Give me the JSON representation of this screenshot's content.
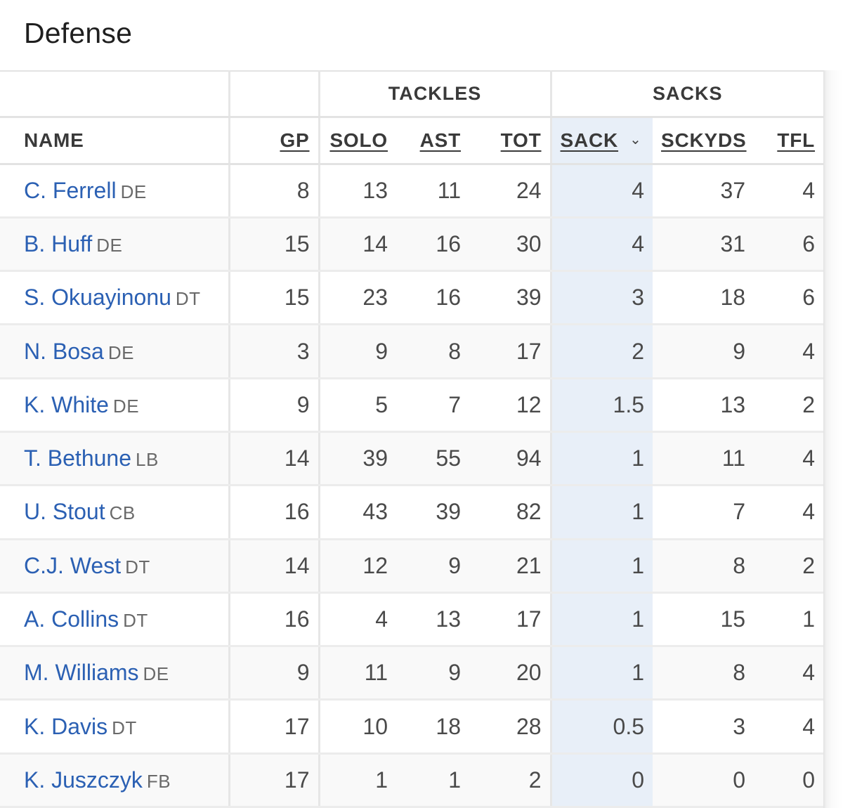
{
  "section": {
    "title": "Defense"
  },
  "groups": {
    "tackles": "TACKLES",
    "sacks": "SACKS"
  },
  "columns": {
    "name": "NAME",
    "gp": "GP",
    "solo": "SOLO",
    "ast": "AST",
    "tot": "TOT",
    "sack": "SACK",
    "sckyds": "SCKYDS",
    "tfl": "TFL"
  },
  "sort": {
    "column": "SACK",
    "direction": "descending",
    "icon": "chevron-down-icon"
  },
  "colors": {
    "link": "#2b60b3",
    "sorted_column_bg": "#e8eff8"
  },
  "players": [
    {
      "name": "C. Ferrell",
      "pos": "DE",
      "gp": "8",
      "solo": "13",
      "ast": "11",
      "tot": "24",
      "sack": "4",
      "sckyds": "37",
      "tfl": "4"
    },
    {
      "name": "B. Huff",
      "pos": "DE",
      "gp": "15",
      "solo": "14",
      "ast": "16",
      "tot": "30",
      "sack": "4",
      "sckyds": "31",
      "tfl": "6"
    },
    {
      "name": "S. Okuayinonu",
      "pos": "DT",
      "gp": "15",
      "solo": "23",
      "ast": "16",
      "tot": "39",
      "sack": "3",
      "sckyds": "18",
      "tfl": "6"
    },
    {
      "name": "N. Bosa",
      "pos": "DE",
      "gp": "3",
      "solo": "9",
      "ast": "8",
      "tot": "17",
      "sack": "2",
      "sckyds": "9",
      "tfl": "4"
    },
    {
      "name": "K. White",
      "pos": "DE",
      "gp": "9",
      "solo": "5",
      "ast": "7",
      "tot": "12",
      "sack": "1.5",
      "sckyds": "13",
      "tfl": "2"
    },
    {
      "name": "T. Bethune",
      "pos": "LB",
      "gp": "14",
      "solo": "39",
      "ast": "55",
      "tot": "94",
      "sack": "1",
      "sckyds": "11",
      "tfl": "4"
    },
    {
      "name": "U. Stout",
      "pos": "CB",
      "gp": "16",
      "solo": "43",
      "ast": "39",
      "tot": "82",
      "sack": "1",
      "sckyds": "7",
      "tfl": "4"
    },
    {
      "name": "C.J. West",
      "pos": "DT",
      "gp": "14",
      "solo": "12",
      "ast": "9",
      "tot": "21",
      "sack": "1",
      "sckyds": "8",
      "tfl": "2"
    },
    {
      "name": "A. Collins",
      "pos": "DT",
      "gp": "16",
      "solo": "4",
      "ast": "13",
      "tot": "17",
      "sack": "1",
      "sckyds": "15",
      "tfl": "1"
    },
    {
      "name": "M. Williams",
      "pos": "DE",
      "gp": "9",
      "solo": "11",
      "ast": "9",
      "tot": "20",
      "sack": "1",
      "sckyds": "8",
      "tfl": "4"
    },
    {
      "name": "K. Davis",
      "pos": "DT",
      "gp": "17",
      "solo": "10",
      "ast": "18",
      "tot": "28",
      "sack": "0.5",
      "sckyds": "3",
      "tfl": "4"
    },
    {
      "name": "K. Juszczyk",
      "pos": "FB",
      "gp": "17",
      "solo": "1",
      "ast": "1",
      "tot": "2",
      "sack": "0",
      "sckyds": "0",
      "tfl": "0"
    }
  ]
}
